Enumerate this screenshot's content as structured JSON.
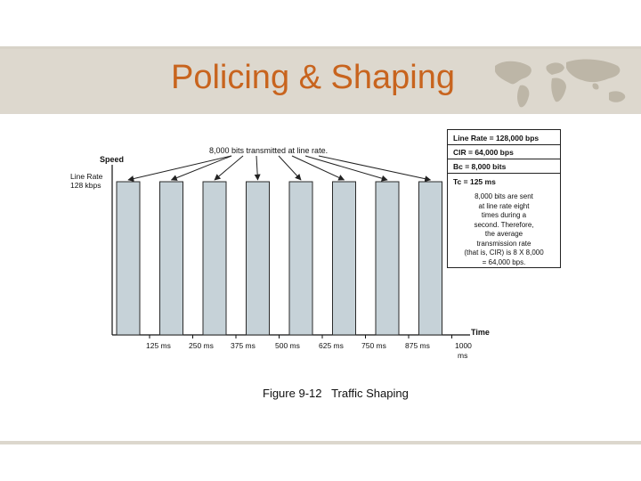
{
  "slide": {
    "title": "Policing & Shaping",
    "caption": "Figure 9-12   Traffic Shaping"
  },
  "decor": {
    "worldmap_icon": "world-map-icon"
  },
  "diagram": {
    "y_axis_label": "Speed",
    "line_rate_label": [
      "Line Rate",
      "128 kbps"
    ],
    "x_axis_label": "Time",
    "top_annotation": "8,000 bits transmitted at line rate.",
    "time_ticks": [
      "125 ms",
      "250 ms",
      "375 ms",
      "500 ms",
      "625 ms",
      "750 ms",
      "875 ms",
      "1000",
      "ms"
    ],
    "bar_count": 8,
    "bar_color": "#c6d2d8",
    "info": {
      "line_rate": "Line Rate = 128,000 bps",
      "cir": "CIR = 64,000 bps",
      "bc": "Bc = 8,000 bits",
      "tc": "Tc = 125 ms",
      "note": [
        "8,000 bits are sent",
        "at line rate eight",
        "times during a",
        "second. Therefore,",
        "the average",
        "transmission rate",
        "(that is, CIR) is 8 X 8,000",
        "= 64,000 bps."
      ]
    }
  }
}
